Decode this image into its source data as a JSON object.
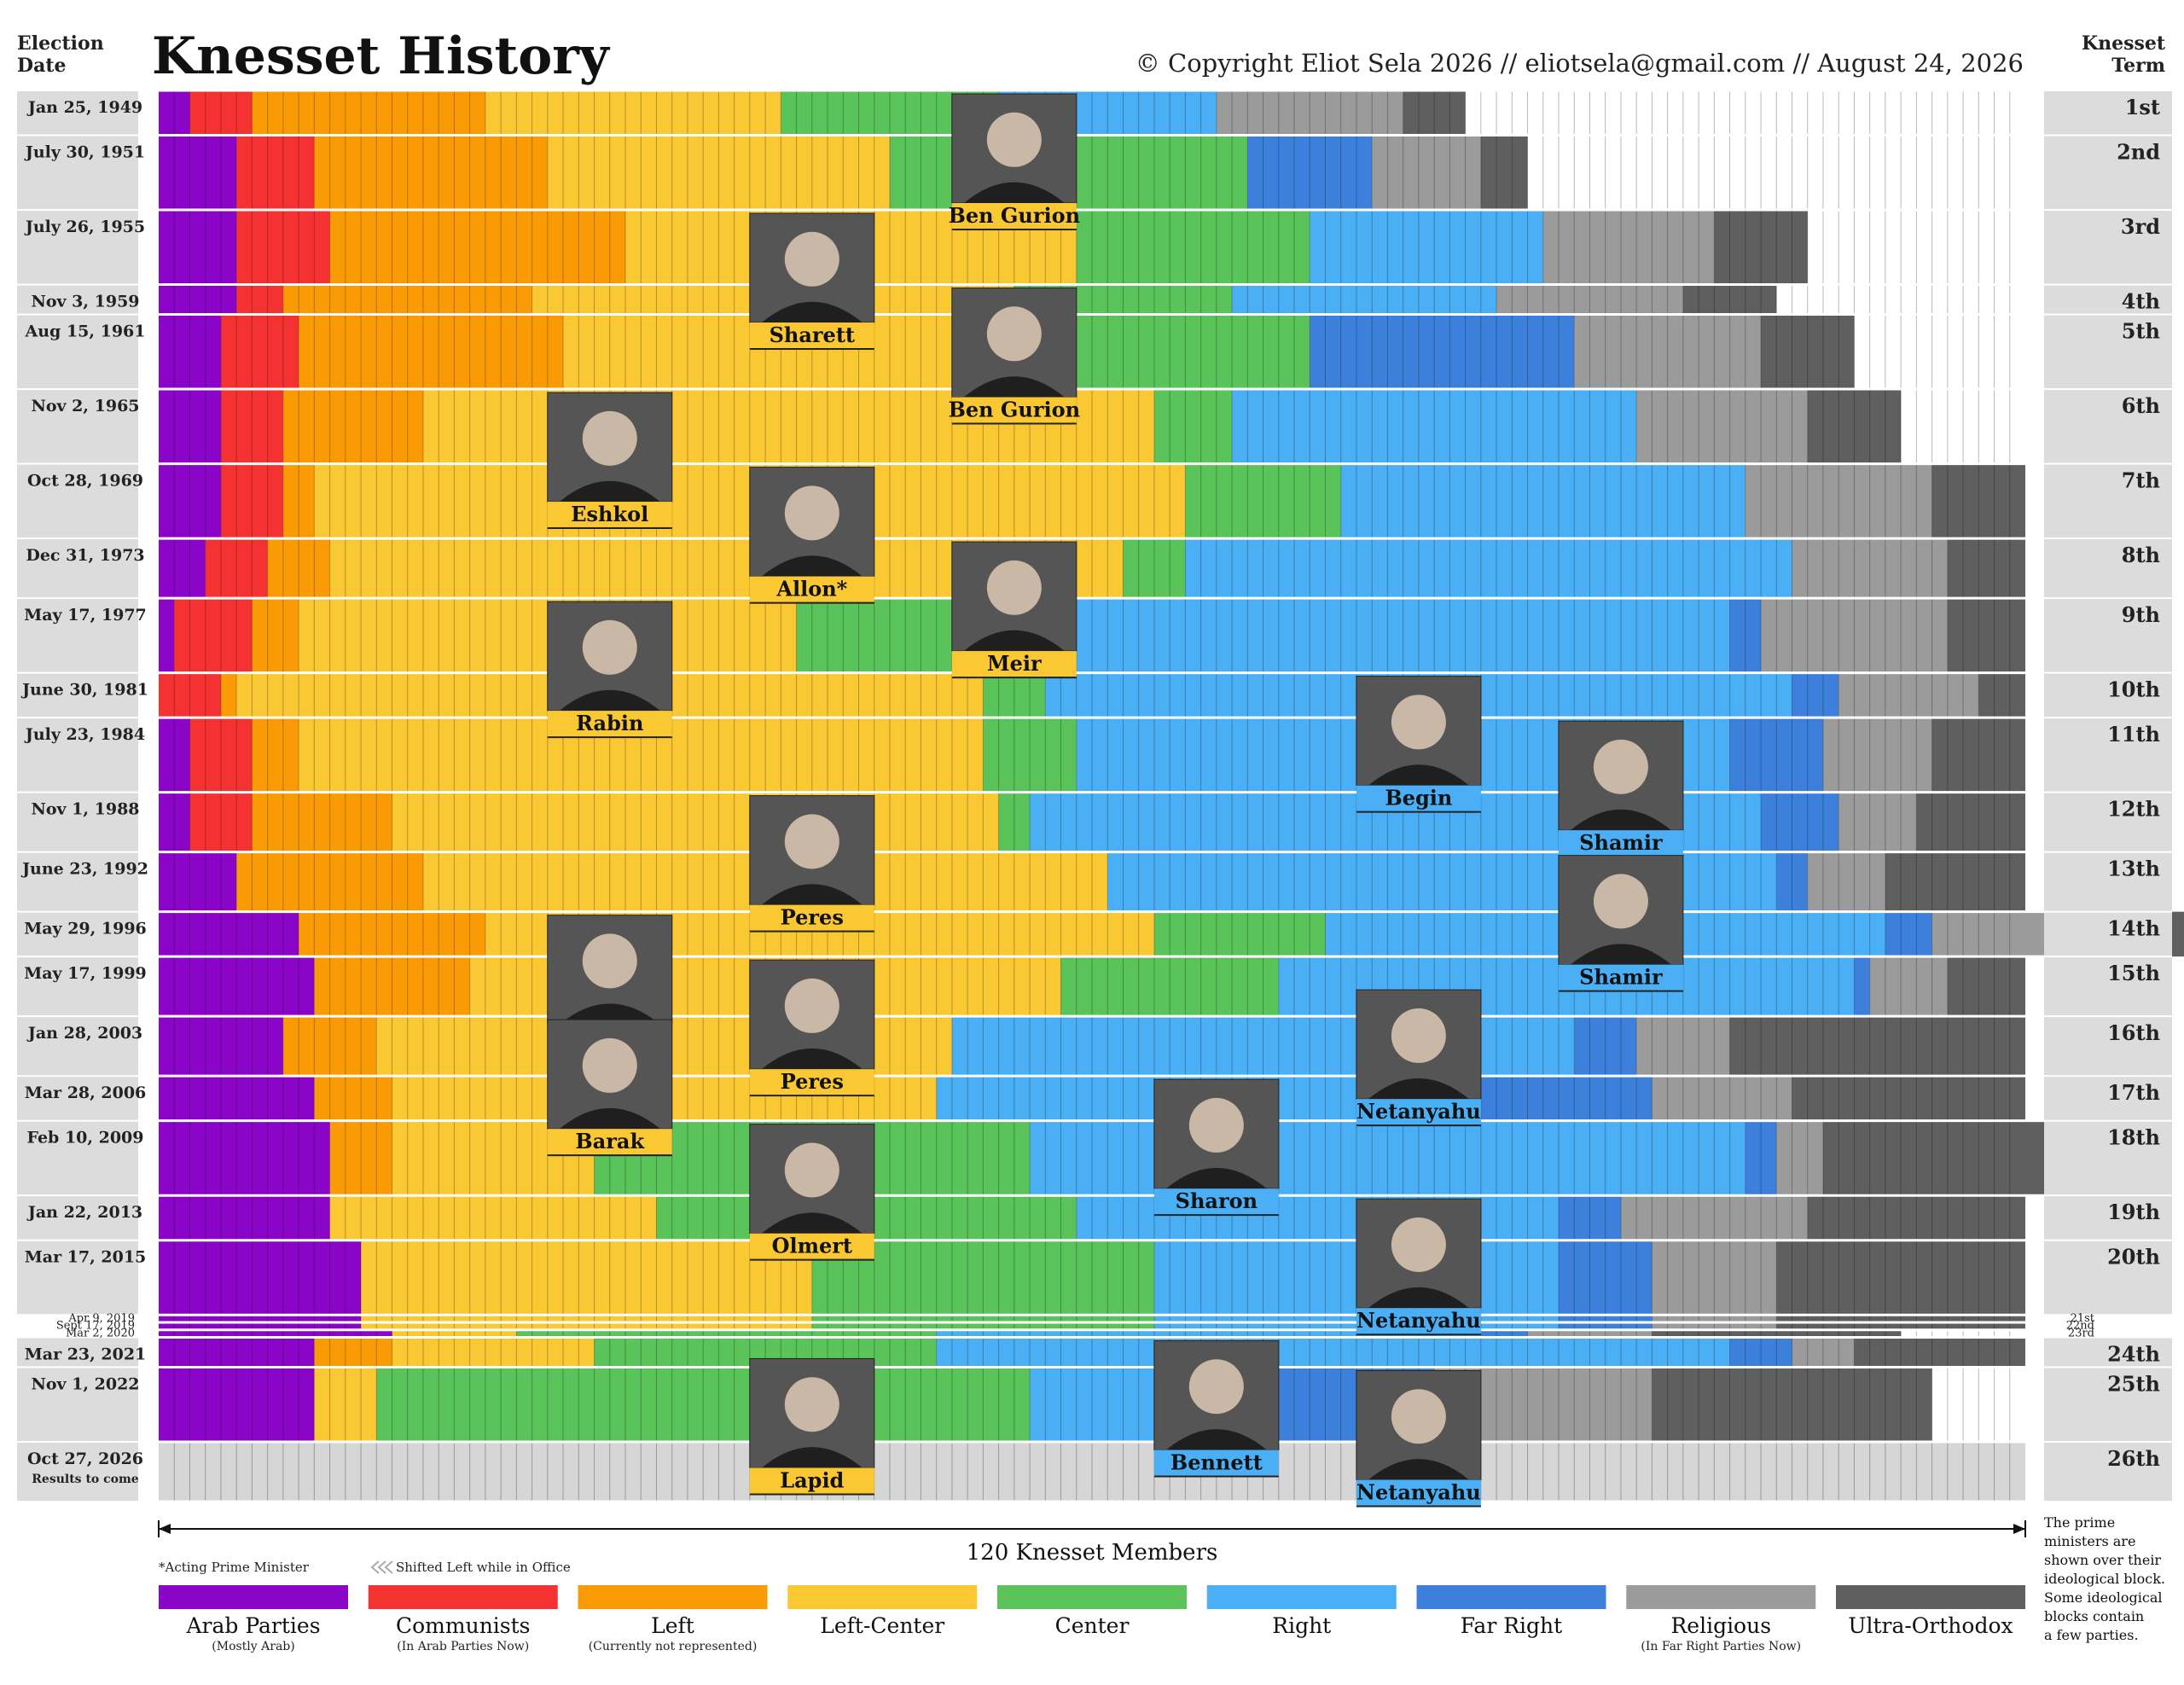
{
  "header": {
    "title": "Knesset History",
    "left_label_line1": "Election",
    "left_label_line2": "Date",
    "right_label_line1": "Knesset",
    "right_label_line2": "Term",
    "copyright": "© Copyright Eliot Sela 2026  //  eliotsela@gmail.com  //  August 24, 2026"
  },
  "footer": {
    "axis_label": "120 Knesset Members",
    "acting_note": "*Acting Prime Minister",
    "shift_note": "Shifted Left while in Office",
    "side_note": [
      "The prime",
      "ministers are",
      "shown over their",
      "ideological block.",
      "Some ideological",
      "blocks contain",
      "a few parties."
    ],
    "results_note": "Results to come"
  },
  "chart_data": {
    "type": "bar",
    "orientation": "horizontal-stacked",
    "total_seats": 120,
    "categories": [
      "Arab Parties",
      "Communists",
      "Left",
      "Left-Center",
      "Center",
      "Right",
      "Far Right",
      "Religious",
      "Ultra-Orthodox"
    ],
    "category_subtitles": [
      "(Mostly Arab)",
      "(In Arab Parties Now)",
      "(Currently not represented)",
      "",
      "",
      "",
      "",
      "(In Far Right Parties Now)",
      ""
    ],
    "colors": [
      "#8B05C8",
      "#F53232",
      "#FA9B05",
      "#FAC832",
      "#5AC35A",
      "#4BAFF5",
      "#3C80DC",
      "#9B9B9B",
      "#5F5F5F"
    ],
    "elections": [
      {
        "date": "Jan 25, 1949",
        "term": "1st",
        "seats": [
          2,
          4,
          15,
          19,
          14,
          14,
          0,
          12,
          4
        ],
        "size": 3
      },
      {
        "date": "July 30, 1951",
        "term": "2nd",
        "seats": [
          5,
          5,
          15,
          22,
          23,
          0,
          8,
          7,
          3
        ],
        "size": 5
      },
      {
        "date": "July 26, 1955",
        "term": "3rd",
        "seats": [
          5,
          6,
          19,
          29,
          15,
          15,
          0,
          11,
          6
        ],
        "size": 5
      },
      {
        "date": "Nov 3, 1959",
        "term": "4th",
        "seats": [
          5,
          3,
          16,
          31,
          14,
          17,
          0,
          12,
          6
        ],
        "size": 2
      },
      {
        "date": "Aug 15, 1961",
        "term": "5th",
        "seats": [
          4,
          5,
          17,
          31,
          17,
          0,
          17,
          12,
          6
        ],
        "size": 5
      },
      {
        "date": "Nov 2, 1965",
        "term": "6th",
        "seats": [
          4,
          4,
          9,
          47,
          5,
          26,
          0,
          11,
          6
        ],
        "size": 5
      },
      {
        "date": "Oct 28, 1969",
        "term": "7th",
        "seats": [
          4,
          4,
          2,
          56,
          10,
          26,
          0,
          12,
          6
        ],
        "size": 5
      },
      {
        "date": "Dec 31, 1973",
        "term": "8th",
        "seats": [
          3,
          4,
          4,
          51,
          4,
          39,
          0,
          10,
          5
        ],
        "size": 4
      },
      {
        "date": "May 17, 1977",
        "term": "9th",
        "seats": [
          1,
          5,
          3,
          32,
          17,
          43,
          2,
          12,
          5
        ],
        "size": 5
      },
      {
        "date": "June 30, 1981",
        "term": "10th",
        "seats": [
          0,
          4,
          1,
          48,
          4,
          48,
          3,
          9,
          3
        ],
        "size": 3
      },
      {
        "date": "July 23, 1984",
        "term": "11th",
        "seats": [
          2,
          4,
          3,
          44,
          6,
          42,
          6,
          7,
          6
        ],
        "size": 5
      },
      {
        "date": "Nov 1, 1988",
        "term": "12th",
        "seats": [
          2,
          4,
          9,
          39,
          2,
          47,
          5,
          5,
          7
        ],
        "size": 4
      },
      {
        "date": "June 23, 1992",
        "term": "13th",
        "seats": [
          5,
          0,
          12,
          44,
          0,
          43,
          2,
          5,
          9
        ],
        "size": 4
      },
      {
        "date": "May 29, 1996",
        "term": "14th",
        "seats": [
          9,
          0,
          12,
          43,
          11,
          36,
          3,
          9,
          17
        ],
        "size": 3
      },
      {
        "date": "May 17, 1999",
        "term": "15th",
        "seats": [
          10,
          0,
          10,
          38,
          14,
          37,
          1,
          5,
          5
        ],
        "size": 4
      },
      {
        "date": "Jan 28, 2003",
        "term": "16th",
        "seats": [
          8,
          0,
          6,
          37,
          0,
          40,
          4,
          6,
          19
        ],
        "size": 4
      },
      {
        "date": "Mar 28, 2006",
        "term": "17th",
        "seats": [
          10,
          0,
          5,
          35,
          0,
          34,
          12,
          9,
          15
        ],
        "size": 3
      },
      {
        "date": "Feb 10, 2009",
        "term": "18th",
        "seats": [
          11,
          0,
          4,
          13,
          28,
          46,
          2,
          3,
          16
        ],
        "size": 5
      },
      {
        "date": "Jan 22, 2013",
        "term": "19th",
        "seats": [
          11,
          0,
          0,
          21,
          27,
          31,
          4,
          12,
          14
        ],
        "size": 3
      },
      {
        "date": "Mar 17, 2015",
        "term": "20th",
        "seats": [
          13,
          0,
          0,
          29,
          22,
          26,
          6,
          8,
          16
        ],
        "size": 5
      },
      {
        "date": "Apr 9, 2019",
        "term": "21st",
        "seats": [
          13,
          0,
          0,
          29,
          22,
          26,
          6,
          8,
          16
        ],
        "size": 0.5
      },
      {
        "date": "Sept 17, 2019",
        "term": "22nd",
        "seats": [
          13,
          0,
          0,
          29,
          22,
          26,
          6,
          8,
          16
        ],
        "size": 0.5
      },
      {
        "date": "Mar 2, 2020",
        "term": "23rd",
        "seats": [
          15,
          0,
          0,
          8,
          27,
          35,
          3,
          8,
          16
        ],
        "size": 0.5
      },
      {
        "date": "Mar 23, 2021",
        "term": "24th",
        "seats": [
          10,
          0,
          5,
          13,
          22,
          51,
          4,
          4,
          11
        ],
        "size": 2
      },
      {
        "date": "Nov 1, 2022",
        "term": "25th",
        "seats": [
          10,
          0,
          0,
          4,
          42,
          12,
          14,
          14,
          18
        ],
        "size": 5
      },
      {
        "date": "Oct 27, 2026",
        "term": "26th",
        "seats": [
          0,
          0,
          0,
          0,
          0,
          0,
          0,
          0,
          0
        ],
        "size": 4
      }
    ],
    "prime_ministers": [
      {
        "name": "Ben Gurion",
        "start": 0,
        "end": 2,
        "seat": 55
      },
      {
        "name": "Sharett",
        "start": 2,
        "end": 3,
        "seat": 42
      },
      {
        "name": "Ben Gurion",
        "start": 3,
        "end": 5,
        "seat": 55
      },
      {
        "name": "Eshkol",
        "start": 5,
        "end": 6,
        "seat": 29
      },
      {
        "name": "Allon*",
        "start": 6,
        "end": 7,
        "seat": 42
      },
      {
        "name": "Meir",
        "start": 7,
        "end": 8,
        "seat": 55
      },
      {
        "name": "Rabin",
        "start": 8,
        "end": 9,
        "seat": 29
      },
      {
        "name": "Begin",
        "start": 9,
        "end": 10,
        "seat": 81
      },
      {
        "name": "Shamir",
        "start": 10,
        "end": 11,
        "seat": 94
      },
      {
        "name": "Peres",
        "start": 11,
        "end": 12,
        "seat": 42
      },
      {
        "name": "Shamir",
        "start": 12,
        "end": 13,
        "seat": 94
      },
      {
        "name": "Rabin",
        "start": 13,
        "end": 14,
        "seat": 29
      },
      {
        "name": "Peres",
        "start": 14,
        "end": 14.5,
        "seat": 42
      },
      {
        "name": "Netanyahu",
        "start": 14.5,
        "end": 15,
        "seat": 81
      },
      {
        "name": "Barak",
        "start": 15,
        "end": 16,
        "seat": 29
      },
      {
        "name": "Sharon",
        "start": 16,
        "end": 17,
        "seat": 68
      },
      {
        "name": "Olmert",
        "start": 17,
        "end": 18,
        "seat": 42
      },
      {
        "name": "Netanyahu",
        "start": 18,
        "end": 22,
        "seat": 81
      },
      {
        "name": "Lapid",
        "start": 23.6,
        "end": 24,
        "seat": 42
      },
      {
        "name": "Bennett",
        "start": 23,
        "end": 23.6,
        "seat": 68
      },
      {
        "name": "Netanyahu",
        "start": 24,
        "end": 25,
        "seat": 81
      }
    ]
  }
}
